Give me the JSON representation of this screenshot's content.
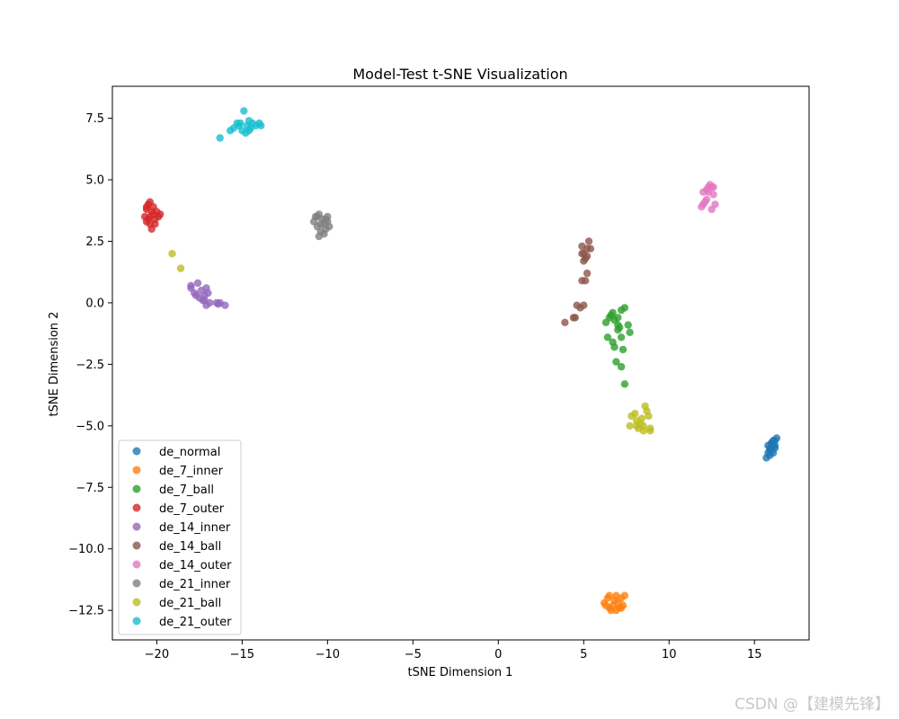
{
  "watermark": "CSDN @【建模先锋】",
  "chart_data": {
    "type": "scatter",
    "title": "Model-Test t-SNE Visualization",
    "xlabel": "tSNE Dimension 1",
    "ylabel": "tSNE Dimension 2",
    "xlim": [
      -22.6,
      18.2
    ],
    "ylim": [
      -13.7,
      8.8
    ],
    "xticks": [
      -20,
      -15,
      -10,
      -5,
      0,
      5,
      10,
      15
    ],
    "yticks": [
      -12.5,
      -10.0,
      -7.5,
      -5.0,
      -2.5,
      0.0,
      2.5,
      5.0,
      7.5
    ],
    "xtick_labels": [
      "−20",
      "−15",
      "−10",
      "−5",
      "0",
      "5",
      "10",
      "15"
    ],
    "ytick_labels": [
      "−12.5",
      "−10.0",
      "−7.5",
      "−5.0",
      "−2.5",
      "0.0",
      "2.5",
      "5.0",
      "7.5"
    ],
    "grid": false,
    "legend": "lower-left",
    "series": [
      {
        "name": "de_normal",
        "color": "#1f77b4",
        "points": [
          [
            15.7,
            -6.3
          ],
          [
            15.8,
            -6.1
          ],
          [
            15.9,
            -5.9
          ],
          [
            16.0,
            -5.7
          ],
          [
            16.1,
            -5.8
          ],
          [
            16.2,
            -5.6
          ],
          [
            16.3,
            -5.5
          ],
          [
            15.9,
            -6.2
          ],
          [
            16.0,
            -6.0
          ],
          [
            16.1,
            -6.1
          ],
          [
            15.8,
            -5.8
          ],
          [
            16.2,
            -5.9
          ],
          [
            16.0,
            -5.7
          ],
          [
            15.9,
            -6.0
          ],
          [
            16.1,
            -5.6
          ],
          [
            16.2,
            -5.8
          ]
        ]
      },
      {
        "name": "de_7_inner",
        "color": "#ff7f0e",
        "points": [
          [
            6.2,
            -12.2
          ],
          [
            6.4,
            -12.0
          ],
          [
            6.5,
            -12.4
          ],
          [
            6.6,
            -12.5
          ],
          [
            6.7,
            -12.3
          ],
          [
            6.8,
            -12.1
          ],
          [
            6.9,
            -11.9
          ],
          [
            7.0,
            -12.2
          ],
          [
            7.1,
            -12.4
          ],
          [
            7.2,
            -12.0
          ],
          [
            7.3,
            -12.3
          ],
          [
            7.4,
            -11.9
          ],
          [
            6.5,
            -11.9
          ],
          [
            6.9,
            -12.5
          ],
          [
            6.3,
            -12.3
          ],
          [
            7.2,
            -12.4
          ]
        ]
      },
      {
        "name": "de_7_ball",
        "color": "#2ca02c",
        "points": [
          [
            6.3,
            -0.8
          ],
          [
            6.5,
            -0.6
          ],
          [
            6.7,
            -0.4
          ],
          [
            6.8,
            -0.7
          ],
          [
            7.0,
            -0.9
          ],
          [
            7.2,
            -0.3
          ],
          [
            7.4,
            -0.2
          ],
          [
            7.6,
            -0.9
          ],
          [
            7.7,
            -1.2
          ],
          [
            6.4,
            -1.4
          ],
          [
            6.7,
            -1.6
          ],
          [
            6.8,
            -1.8
          ],
          [
            7.0,
            -1.1
          ],
          [
            7.2,
            -1.4
          ],
          [
            7.1,
            -1.0
          ],
          [
            7.3,
            -1.9
          ],
          [
            6.9,
            -2.4
          ],
          [
            7.2,
            -2.6
          ],
          [
            7.4,
            -3.3
          ],
          [
            6.6,
            -0.5
          ],
          [
            7.0,
            -0.6
          ]
        ]
      },
      {
        "name": "de_7_outer",
        "color": "#d62728",
        "points": [
          [
            -20.7,
            3.5
          ],
          [
            -20.6,
            3.8
          ],
          [
            -20.5,
            4.0
          ],
          [
            -20.4,
            3.2
          ],
          [
            -20.3,
            3.0
          ],
          [
            -20.2,
            3.9
          ],
          [
            -20.1,
            3.4
          ],
          [
            -20.0,
            3.7
          ],
          [
            -19.9,
            3.5
          ],
          [
            -20.6,
            3.3
          ],
          [
            -20.4,
            4.1
          ],
          [
            -20.2,
            3.6
          ],
          [
            -20.5,
            3.4
          ],
          [
            -20.3,
            3.7
          ],
          [
            -20.1,
            3.2
          ],
          [
            -20.6,
            3.9
          ],
          [
            -19.8,
            3.6
          ],
          [
            -20.4,
            3.5
          ]
        ]
      },
      {
        "name": "de_14_inner",
        "color": "#9467bd",
        "points": [
          [
            -18.0,
            0.7
          ],
          [
            -17.8,
            0.4
          ],
          [
            -17.6,
            0.8
          ],
          [
            -17.5,
            0.2
          ],
          [
            -17.4,
            0.5
          ],
          [
            -17.3,
            0.1
          ],
          [
            -17.2,
            0.3
          ],
          [
            -17.1,
            0.6
          ],
          [
            -17.0,
            0.4
          ],
          [
            -16.9,
            0.0
          ],
          [
            -17.1,
            -0.1
          ],
          [
            -16.5,
            -0.0
          ],
          [
            -16.3,
            0.0
          ],
          [
            -16.0,
            -0.1
          ],
          [
            -18.0,
            0.6
          ],
          [
            -17.7,
            0.3
          ],
          [
            -17.2,
            0.1
          ],
          [
            -16.4,
            -0.05
          ]
        ]
      },
      {
        "name": "de_14_ball",
        "color": "#8c564b",
        "points": [
          [
            4.9,
            2.3
          ],
          [
            5.0,
            2.0
          ],
          [
            5.1,
            1.8
          ],
          [
            5.2,
            2.2
          ],
          [
            5.3,
            2.5
          ],
          [
            5.4,
            2.2
          ],
          [
            5.0,
            1.7
          ],
          [
            5.2,
            1.2
          ],
          [
            4.9,
            0.9
          ],
          [
            5.1,
            0.9
          ],
          [
            4.6,
            -0.1
          ],
          [
            4.8,
            -0.2
          ],
          [
            5.0,
            -0.1
          ],
          [
            4.4,
            -0.6
          ],
          [
            4.5,
            -0.6
          ],
          [
            3.9,
            -0.8
          ],
          [
            4.9,
            2.0
          ],
          [
            5.2,
            1.9
          ]
        ]
      },
      {
        "name": "de_14_outer",
        "color": "#e377c2",
        "points": [
          [
            11.9,
            3.9
          ],
          [
            12.0,
            4.5
          ],
          [
            12.1,
            4.1
          ],
          [
            12.2,
            4.6
          ],
          [
            12.3,
            4.7
          ],
          [
            12.4,
            4.8
          ],
          [
            12.5,
            4.7
          ],
          [
            12.6,
            4.4
          ],
          [
            12.7,
            4.0
          ],
          [
            12.5,
            3.8
          ],
          [
            12.2,
            4.2
          ],
          [
            12.0,
            4.0
          ],
          [
            12.6,
            4.7
          ],
          [
            12.3,
            4.5
          ]
        ]
      },
      {
        "name": "de_21_inner",
        "color": "#7f7f7f",
        "points": [
          [
            -10.8,
            3.3
          ],
          [
            -10.7,
            3.5
          ],
          [
            -10.6,
            3.1
          ],
          [
            -10.5,
            3.6
          ],
          [
            -10.4,
            2.9
          ],
          [
            -10.3,
            3.4
          ],
          [
            -10.2,
            3.2
          ],
          [
            -10.1,
            3.0
          ],
          [
            -10.0,
            3.3
          ],
          [
            -9.9,
            3.1
          ],
          [
            -10.5,
            2.7
          ],
          [
            -10.2,
            2.8
          ],
          [
            -10.6,
            3.5
          ],
          [
            -10.0,
            3.5
          ],
          [
            -10.4,
            3.2
          ],
          [
            -10.1,
            3.4
          ]
        ]
      },
      {
        "name": "de_21_ball",
        "color": "#bcbd22",
        "points": [
          [
            -19.1,
            2.0
          ],
          [
            -18.6,
            1.4
          ],
          [
            7.7,
            -5.0
          ],
          [
            7.8,
            -4.6
          ],
          [
            8.0,
            -4.5
          ],
          [
            8.1,
            -4.8
          ],
          [
            8.2,
            -5.1
          ],
          [
            8.3,
            -4.9
          ],
          [
            8.4,
            -4.7
          ],
          [
            8.5,
            -5.0
          ],
          [
            8.6,
            -4.2
          ],
          [
            8.7,
            -4.4
          ],
          [
            8.8,
            -4.6
          ],
          [
            8.9,
            -5.1
          ],
          [
            8.9,
            -5.2
          ],
          [
            8.1,
            -5.0
          ],
          [
            8.5,
            -5.2
          ]
        ]
      },
      {
        "name": "de_21_outer",
        "color": "#17becf",
        "points": [
          [
            -16.3,
            6.7
          ],
          [
            -15.7,
            7.0
          ],
          [
            -15.5,
            7.1
          ],
          [
            -15.3,
            7.3
          ],
          [
            -15.2,
            7.2
          ],
          [
            -15.0,
            7.0
          ],
          [
            -14.9,
            7.8
          ],
          [
            -14.8,
            6.9
          ],
          [
            -14.7,
            7.2
          ],
          [
            -14.6,
            7.4
          ],
          [
            -14.5,
            7.1
          ],
          [
            -14.4,
            7.3
          ],
          [
            -14.2,
            7.2
          ],
          [
            -14.0,
            7.3
          ],
          [
            -13.9,
            7.2
          ],
          [
            -15.1,
            7.3
          ],
          [
            -14.6,
            7.0
          ]
        ]
      }
    ]
  }
}
